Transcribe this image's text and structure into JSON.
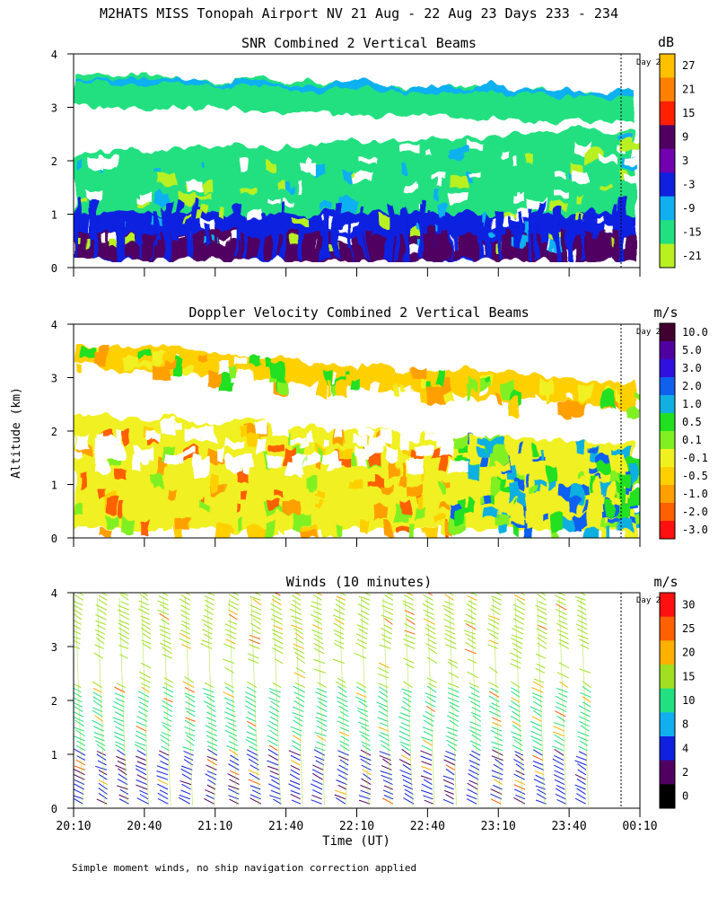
{
  "figure": {
    "title": "M2HATS MISS Tonopah Airport NV  21 Aug - 22 Aug 23 Days 233 - 234",
    "ylabel": "Altitude (km)",
    "xlabel": "Time (UT)",
    "footnote": "Simple moment winds, no ship navigation correction applied",
    "day_marker_label": "Day 2"
  },
  "chart_data": [
    {
      "type": "heatmap",
      "title": "SNR Combined 2 Vertical Beams",
      "ylim": [
        0,
        4
      ],
      "yticks": [
        "0",
        "1",
        "2",
        "3",
        "4"
      ],
      "colorbar": {
        "unit": "dB",
        "labels": [
          "27",
          "21",
          "15",
          "9",
          "3",
          "-3",
          "-9",
          "-15",
          "-21"
        ],
        "colors": [
          "#ffc000",
          "#ff8000",
          "#ff2000",
          "#500060",
          "#7000b0",
          "#1020e0",
          "#10b0f0",
          "#20e080",
          "#b8f020"
        ]
      },
      "layers": [
        {
          "name": "upper layer",
          "alt_start": [
            3.65,
            3.05
          ],
          "alt_end": [
            3.25,
            2.7
          ],
          "level": "-15"
        },
        {
          "name": "strong return band",
          "alt_start": [
            3.55,
            3.45
          ],
          "alt_end": [
            3.3,
            3.2
          ],
          "level": "-9"
        },
        {
          "name": "mid layer",
          "alt_start": [
            2.1,
            0.4
          ],
          "alt_end": [
            2.6,
            0.3
          ],
          "level": "-15"
        },
        {
          "name": "boundary layer",
          "alt_start": [
            1.0,
            0.15
          ],
          "alt_end": [
            1.0,
            0.15
          ],
          "level": "-3"
        },
        {
          "name": "surface layer",
          "alt_start": [
            0.7,
            0.15
          ],
          "alt_end": [
            0.55,
            0.15
          ],
          "level": "9"
        }
      ]
    },
    {
      "type": "heatmap",
      "title": "Doppler Velocity Combined 2 Vertical Beams",
      "ylim": [
        0,
        4
      ],
      "yticks": [
        "0",
        "1",
        "2",
        "3",
        "4"
      ],
      "colorbar": {
        "unit": "m/s",
        "labels": [
          "10.0",
          "5.0",
          "3.0",
          "2.0",
          "1.0",
          "0.5",
          "0.1",
          "-0.1",
          "-0.5",
          "-1.0",
          "-2.0",
          "-3.0"
        ],
        "colors": [
          "#400030",
          "#5000a0",
          "#3010e0",
          "#1060f0",
          "#10b0e0",
          "#20e020",
          "#80f020",
          "#f0f020",
          "#ffd000",
          "#ffa000",
          "#ff6000",
          "#ff1010"
        ]
      },
      "layers": [
        {
          "name": "upper layer",
          "alt_start": [
            3.65,
            3.25
          ],
          "alt_end": [
            2.9,
            2.4
          ],
          "level": "-0.5"
        },
        {
          "name": "lower layer",
          "alt_start": [
            2.3,
            0.15
          ],
          "alt_end": [
            1.8,
            0.15
          ],
          "level": "-0.1"
        }
      ]
    },
    {
      "type": "scatter",
      "title": "Winds (10 minutes)",
      "ylim": [
        0,
        4
      ],
      "yticks": [
        "0",
        "1",
        "2",
        "3",
        "4"
      ],
      "xticks": [
        "20:10",
        "20:40",
        "21:10",
        "21:40",
        "22:10",
        "22:40",
        "23:10",
        "23:40",
        "00:10"
      ],
      "colorbar": {
        "unit": "m/s",
        "labels": [
          "30",
          "25",
          "20",
          "15",
          "10",
          "8",
          "4",
          "2",
          "0"
        ],
        "colors": [
          "#ff1010",
          "#ff6000",
          "#ffb000",
          "#a0e020",
          "#20e080",
          "#10b0f0",
          "#1020e0",
          "#500060",
          "#000000"
        ]
      },
      "profile_count": 24,
      "speed_by_altitude": [
        {
          "alt": [
            0.0,
            1.0
          ],
          "speed": "4"
        },
        {
          "alt": [
            1.0,
            2.2
          ],
          "speed": "10"
        },
        {
          "alt": [
            2.2,
            3.0
          ],
          "speed": "15"
        },
        {
          "alt": [
            3.0,
            4.0
          ],
          "speed": "15"
        }
      ]
    }
  ]
}
